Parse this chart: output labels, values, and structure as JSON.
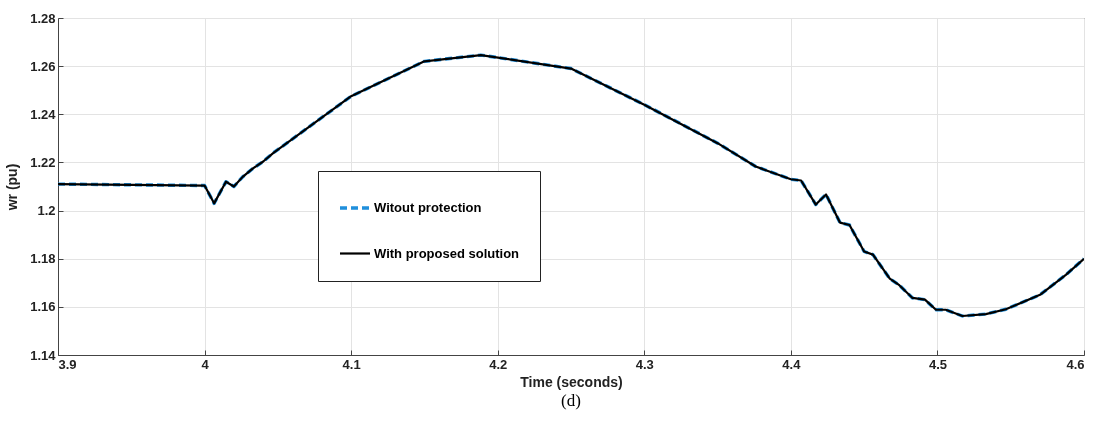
{
  "chart_data": {
    "type": "line",
    "xlabel": "Time (seconds)",
    "ylabel": "wr (pu)",
    "annotations": [
      "(d)"
    ],
    "x": [
      3.9,
      3.95,
      4.0,
      4.0065,
      4.0146,
      4.02,
      4.026,
      4.033,
      4.04,
      4.047,
      4.1,
      4.15,
      4.1885,
      4.25,
      4.3,
      4.35,
      4.376,
      4.4,
      4.407,
      4.417,
      4.424,
      4.4335,
      4.44,
      4.45,
      4.456,
      4.4675,
      4.474,
      4.483,
      4.4915,
      4.499,
      4.5057,
      4.517,
      4.533,
      4.5467,
      4.57,
      4.5876,
      4.6
    ],
    "series": [
      {
        "name": "Witout protection",
        "color": "#1f8fdc",
        "line_style": "dashed",
        "values": [
          1.211,
          1.2107,
          1.2104,
          1.203,
          1.212,
          1.21,
          1.214,
          1.2175,
          1.2204,
          1.224,
          1.2475,
          1.262,
          1.2646,
          1.259,
          1.244,
          1.228,
          1.2183,
          1.213,
          1.2125,
          1.2025,
          1.2067,
          1.195,
          1.194,
          1.183,
          1.1817,
          1.1717,
          1.169,
          1.1637,
          1.163,
          1.1588,
          1.1588,
          1.1562,
          1.157,
          1.159,
          1.165,
          1.1733,
          1.18
        ]
      },
      {
        "name": "With proposed solution",
        "color": "#000000",
        "line_style": "solid",
        "values": [
          1.211,
          1.2107,
          1.2104,
          1.203,
          1.212,
          1.21,
          1.214,
          1.2175,
          1.2204,
          1.224,
          1.2475,
          1.262,
          1.2646,
          1.259,
          1.244,
          1.228,
          1.2183,
          1.213,
          1.2125,
          1.2025,
          1.2067,
          1.195,
          1.194,
          1.183,
          1.1817,
          1.1717,
          1.169,
          1.1637,
          1.163,
          1.1588,
          1.1588,
          1.1562,
          1.157,
          1.159,
          1.165,
          1.1733,
          1.18
        ]
      }
    ],
    "xlim": [
      3.9,
      4.6
    ],
    "xticks": [
      3.9,
      4,
      4.1,
      4.2,
      4.3,
      4.4,
      4.5,
      4.6
    ],
    "ylim": [
      1.14,
      1.28
    ],
    "yticks": [
      1.14,
      1.16,
      1.18,
      1.2,
      1.22,
      1.24,
      1.26,
      1.28
    ],
    "grid": true,
    "legend": "center"
  }
}
